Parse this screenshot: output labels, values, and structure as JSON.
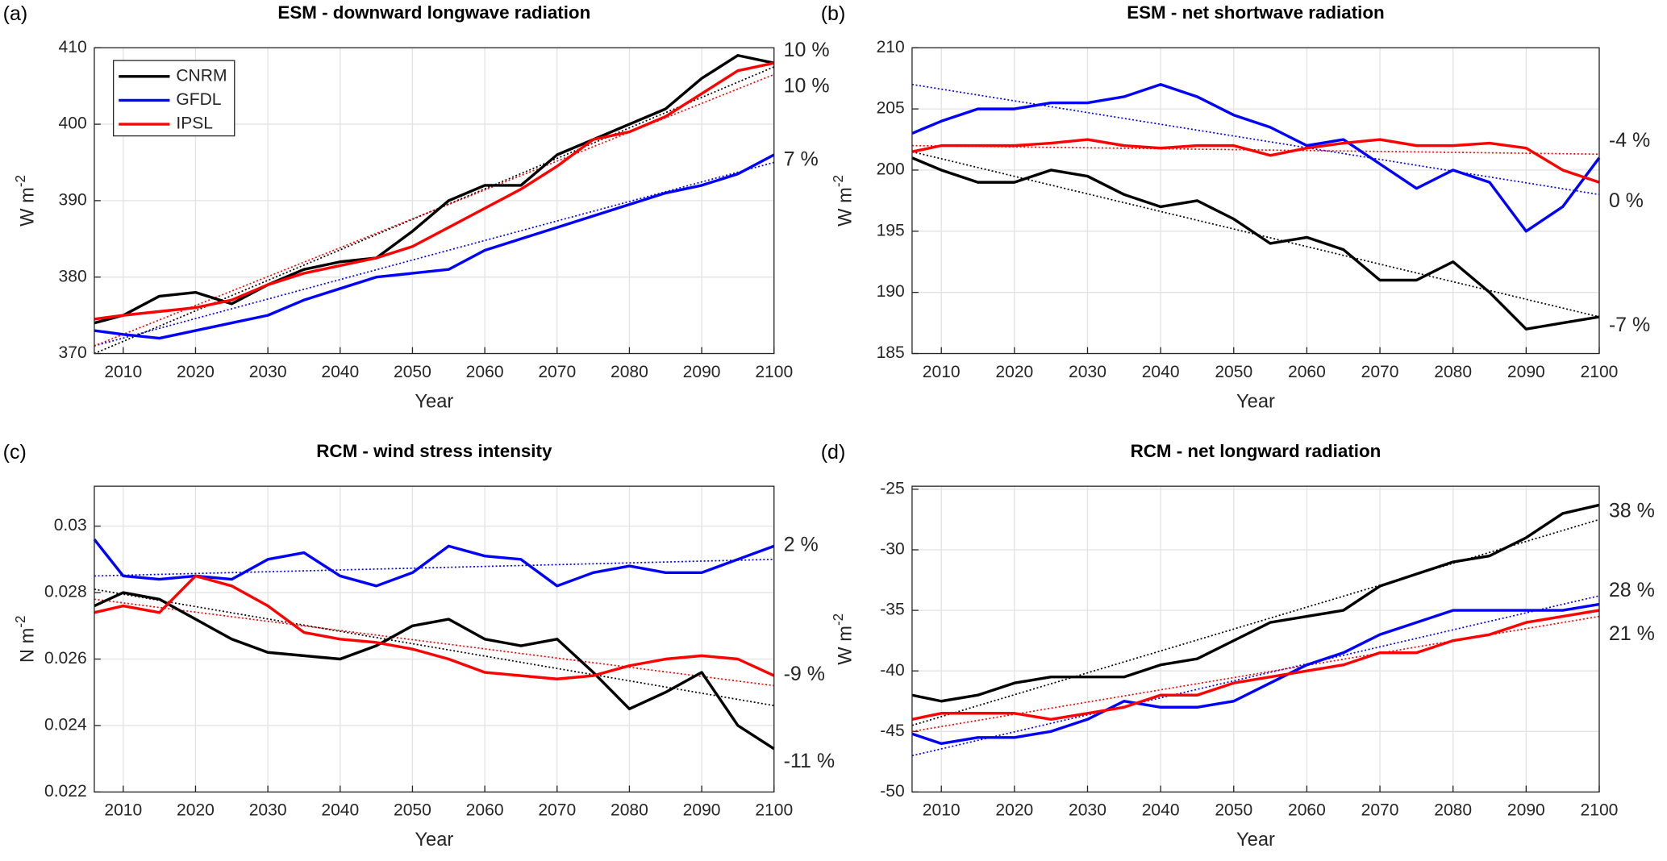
{
  "chart_data": [
    {
      "type": "line",
      "letter": "(a)",
      "title": "ESM - downward longwave radiation",
      "xlabel": "Year",
      "ylabel": "W m",
      "ylabel_exponent": "-2",
      "x": [
        2006,
        2010,
        2015,
        2020,
        2025,
        2030,
        2035,
        2040,
        2045,
        2050,
        2055,
        2060,
        2065,
        2070,
        2075,
        2080,
        2085,
        2090,
        2095,
        2100
      ],
      "xlim": [
        2006,
        2100
      ],
      "xticks": [
        2010,
        2020,
        2030,
        2040,
        2050,
        2060,
        2070,
        2080,
        2090,
        2100
      ],
      "ylim": [
        370,
        410
      ],
      "yticks": [
        370,
        380,
        390,
        400,
        410
      ],
      "grid": true,
      "legend": "upper left",
      "series": [
        {
          "name": "CNRM",
          "color": "#000000",
          "values": [
            374,
            375,
            377.5,
            378,
            376.5,
            379,
            381,
            382,
            382.5,
            386,
            390,
            392,
            392,
            396,
            398,
            400,
            402,
            406,
            409,
            408
          ],
          "trend": [
            370,
            407.5
          ],
          "label": "10 %"
        },
        {
          "name": "GFDL",
          "color": "#0000ff",
          "values": [
            373,
            372.5,
            372,
            373,
            374,
            375,
            377,
            378.5,
            380,
            380.5,
            381,
            383.5,
            385,
            386.5,
            388,
            389.5,
            391,
            392,
            393.5,
            396
          ],
          "trend": [
            371,
            395
          ],
          "label": "7 %"
        },
        {
          "name": "IPSL",
          "color": "#ff0000",
          "values": [
            374.5,
            375,
            375.5,
            376,
            377,
            379,
            380.5,
            381.5,
            382.5,
            384,
            386.5,
            389,
            391.5,
            394.5,
            398,
            399,
            401,
            404,
            407,
            408
          ],
          "trend": [
            371,
            406.5
          ],
          "label": "10 %"
        }
      ]
    },
    {
      "type": "line",
      "letter": "(b)",
      "title": "ESM - net shortwave radiation",
      "xlabel": "Year",
      "ylabel": "W m",
      "ylabel_exponent": "-2",
      "x": [
        2006,
        2010,
        2015,
        2020,
        2025,
        2030,
        2035,
        2040,
        2045,
        2050,
        2055,
        2060,
        2065,
        2070,
        2075,
        2080,
        2085,
        2090,
        2095,
        2100
      ],
      "xlim": [
        2006,
        2100
      ],
      "xticks": [
        2010,
        2020,
        2030,
        2040,
        2050,
        2060,
        2070,
        2080,
        2090,
        2100
      ],
      "ylim": [
        185,
        210
      ],
      "yticks": [
        185,
        190,
        195,
        200,
        205,
        210
      ],
      "grid": true,
      "series": [
        {
          "name": "CNRM",
          "color": "#000000",
          "values": [
            201,
            200,
            199,
            199,
            200,
            199.5,
            198,
            197,
            197.5,
            196,
            194,
            194.5,
            193.5,
            191,
            191,
            192.5,
            190,
            187,
            187.5,
            188
          ],
          "trend": [
            201.5,
            188
          ],
          "label": "-7 %"
        },
        {
          "name": "GFDL",
          "color": "#0000ff",
          "values": [
            203,
            204,
            205,
            205,
            205.5,
            205.5,
            206,
            207,
            206,
            204.5,
            203.5,
            202,
            202.5,
            200.5,
            198.5,
            200,
            199,
            195,
            197,
            201
          ],
          "trend": [
            207,
            198
          ],
          "label": "-4 %"
        },
        {
          "name": "IPSL",
          "color": "#ff0000",
          "values": [
            201.5,
            202,
            202,
            202,
            202.2,
            202.5,
            202,
            201.8,
            202,
            202,
            201.2,
            201.8,
            202.2,
            202.5,
            202,
            202,
            202.2,
            201.8,
            200,
            199
          ],
          "trend": [
            202,
            201.3
          ],
          "label": "0 %"
        }
      ]
    },
    {
      "type": "line",
      "letter": "(c)",
      "title": "RCM - wind stress intensity",
      "xlabel": "Year",
      "ylabel": "N m",
      "ylabel_exponent": "-2",
      "x": [
        2006,
        2010,
        2015,
        2020,
        2025,
        2030,
        2035,
        2040,
        2045,
        2050,
        2055,
        2060,
        2065,
        2070,
        2075,
        2080,
        2085,
        2090,
        2095,
        2100
      ],
      "xlim": [
        2006,
        2100
      ],
      "xticks": [
        2010,
        2020,
        2030,
        2040,
        2050,
        2060,
        2070,
        2080,
        2090,
        2100
      ],
      "ylim": [
        0.022,
        0.0312
      ],
      "yticks": [
        0.022,
        0.024,
        0.026,
        0.028,
        0.03
      ],
      "grid": true,
      "series": [
        {
          "name": "CNRM",
          "color": "#000000",
          "values": [
            0.0276,
            0.028,
            0.0278,
            0.0272,
            0.0266,
            0.0262,
            0.0261,
            0.026,
            0.0264,
            0.027,
            0.0272,
            0.0266,
            0.0264,
            0.0266,
            0.0256,
            0.0245,
            0.025,
            0.0256,
            0.024,
            0.0233
          ],
          "trend": [
            0.0281,
            0.0246
          ],
          "label": "-11 %"
        },
        {
          "name": "GFDL",
          "color": "#0000ff",
          "values": [
            0.0296,
            0.0285,
            0.0284,
            0.0285,
            0.0284,
            0.029,
            0.0292,
            0.0285,
            0.0282,
            0.0286,
            0.0294,
            0.0291,
            0.029,
            0.0282,
            0.0286,
            0.0288,
            0.0286,
            0.0286,
            0.029,
            0.0294
          ],
          "trend": [
            0.0285,
            0.029
          ],
          "label": "2 %"
        },
        {
          "name": "IPSL",
          "color": "#ff0000",
          "values": [
            0.0274,
            0.0276,
            0.0274,
            0.0285,
            0.0282,
            0.0276,
            0.0268,
            0.0266,
            0.0265,
            0.0263,
            0.026,
            0.0256,
            0.0255,
            0.0254,
            0.0255,
            0.0258,
            0.026,
            0.0261,
            0.026,
            0.0255
          ],
          "trend": [
            0.0278,
            0.0252
          ],
          "label": "-9 %"
        }
      ]
    },
    {
      "type": "line",
      "letter": "(d)",
      "title": "RCM - net longward radiation",
      "xlabel": "Year",
      "ylabel": "W m",
      "ylabel_exponent": "-2",
      "x": [
        2006,
        2010,
        2015,
        2020,
        2025,
        2030,
        2035,
        2040,
        2045,
        2050,
        2055,
        2060,
        2065,
        2070,
        2075,
        2080,
        2085,
        2090,
        2095,
        2100
      ],
      "xlim": [
        2006,
        2100
      ],
      "xticks": [
        2010,
        2020,
        2030,
        2040,
        2050,
        2060,
        2070,
        2080,
        2090,
        2100
      ],
      "ylim": [
        -50,
        -24.75
      ],
      "yticks": [
        -50,
        -45,
        -40,
        -35,
        -30,
        -25
      ],
      "grid": true,
      "series": [
        {
          "name": "CNRM",
          "color": "#000000",
          "values": [
            -42,
            -42.5,
            -42,
            -41,
            -40.5,
            -40.5,
            -40.5,
            -39.5,
            -39,
            -37.5,
            -36,
            -35.5,
            -35,
            -33,
            -32,
            -31,
            -30.5,
            -29,
            -27,
            -26.3
          ],
          "trend": [
            -44.5,
            -27.5
          ],
          "label": "38 %"
        },
        {
          "name": "GFDL",
          "color": "#0000ff",
          "values": [
            -45.2,
            -46,
            -45.5,
            -45.5,
            -45,
            -44,
            -42.5,
            -43,
            -43,
            -42.5,
            -41,
            -39.5,
            -38.5,
            -37,
            -36,
            -35,
            -35,
            -35,
            -35,
            -34.5
          ],
          "trend": [
            -47,
            -33.8
          ],
          "label": "28 %"
        },
        {
          "name": "IPSL",
          "color": "#ff0000",
          "values": [
            -44,
            -43.5,
            -43.5,
            -43.5,
            -44,
            -43.5,
            -43,
            -42,
            -42,
            -41,
            -40.5,
            -40,
            -39.5,
            -38.5,
            -38.5,
            -37.5,
            -37,
            -36,
            -35.5,
            -35
          ],
          "trend": [
            -45,
            -35.5
          ],
          "label": "21 %"
        }
      ]
    }
  ]
}
